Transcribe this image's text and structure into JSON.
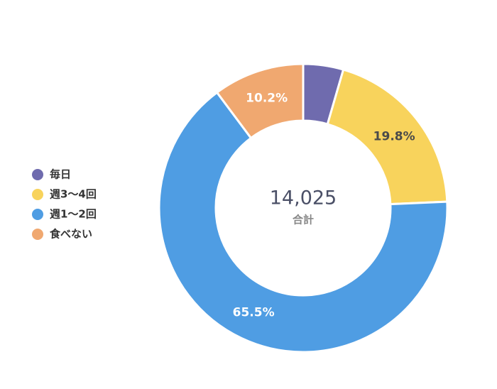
{
  "chart_data": {
    "type": "donut",
    "categories": [
      "毎日",
      "週3〜4回",
      "週1〜2回",
      "食べない"
    ],
    "values": [
      4.5,
      19.8,
      65.5,
      10.2
    ],
    "value_labels": [
      null,
      "19.8%",
      "65.5%",
      "10.2%"
    ],
    "colors": [
      "#6f6bae",
      "#f8d35c",
      "#4f9de3",
      "#f0a870"
    ],
    "center_value": "14,025",
    "center_caption": "合計",
    "legend": "left"
  }
}
